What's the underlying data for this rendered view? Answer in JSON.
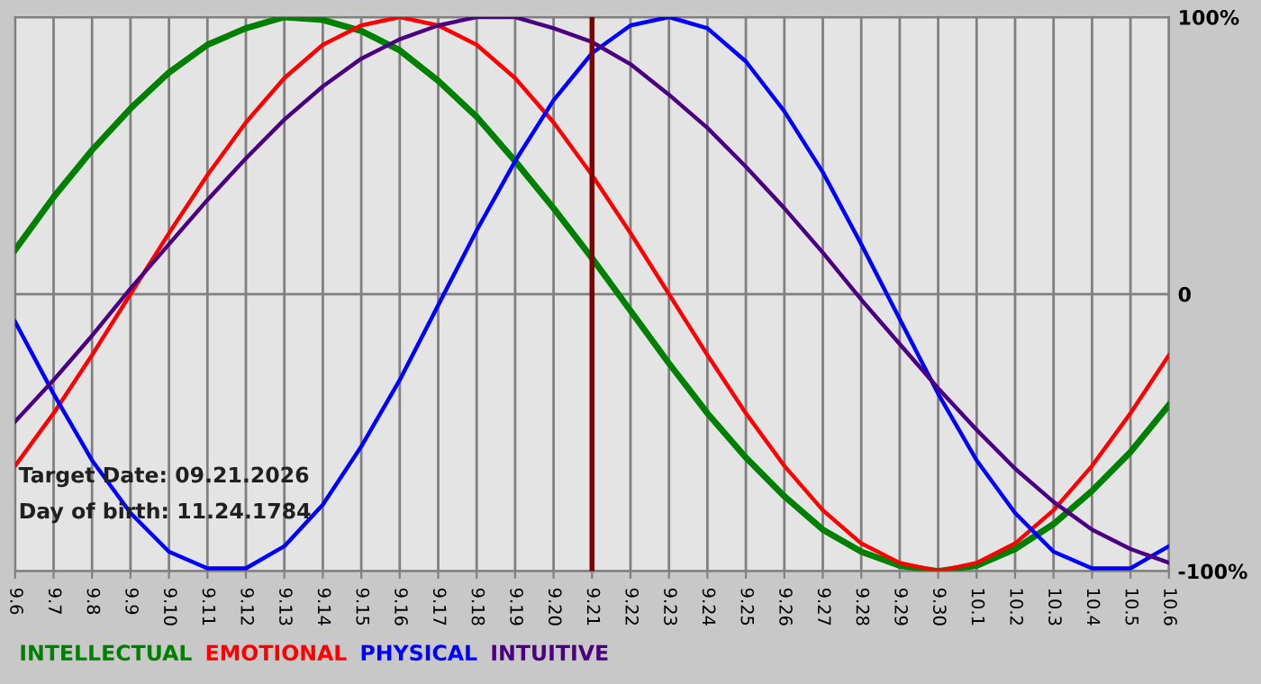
{
  "chart_data": {
    "type": "line",
    "categories": [
      "9.6",
      "9.7",
      "9.8",
      "9.9",
      "9.10",
      "9.11",
      "9.12",
      "9.13",
      "9.14",
      "9.15",
      "9.16",
      "9.17",
      "9.18",
      "9.19",
      "9.20",
      "9.21",
      "9.22",
      "9.23",
      "9.24",
      "9.25",
      "9.26",
      "9.27",
      "9.28",
      "9.29",
      "9.30",
      "10.1",
      "10.2",
      "10.3",
      "10.4",
      "10.5",
      "10.6"
    ],
    "series": [
      {
        "name": "INTELLECTUAL",
        "color": "#008000",
        "values": [
          16,
          35,
          52,
          67,
          80,
          90,
          96,
          100,
          99,
          95,
          88,
          77,
          64,
          48,
          31,
          13,
          -6,
          -25,
          -43,
          -59,
          -73,
          -85,
          -93,
          -98,
          -100,
          -98,
          -92,
          -83,
          -71,
          -57,
          -40
        ]
      },
      {
        "name": "EMOTIONAL",
        "color": "#ff0000",
        "values": [
          -62,
          -43,
          -22,
          0,
          22,
          43,
          62,
          78,
          90,
          97,
          100,
          97,
          90,
          78,
          62,
          43,
          22,
          0,
          -22,
          -43,
          -62,
          -78,
          -90,
          -97,
          -100,
          -97,
          -90,
          -78,
          -62,
          -43,
          -22
        ]
      },
      {
        "name": "PHYSICAL",
        "color": "#0000ff",
        "values": [
          -10,
          -36,
          -60,
          -79,
          -93,
          -99,
          -99,
          -91,
          -76,
          -55,
          -31,
          -4,
          23,
          48,
          70,
          87,
          97,
          100,
          96,
          84,
          66,
          44,
          18,
          -9,
          -36,
          -60,
          -79,
          -93,
          -99,
          -99,
          -91
        ]
      },
      {
        "name": "INTUITIVE",
        "color": "#4b0082",
        "values": [
          -46,
          -31,
          -15,
          2,
          18,
          34,
          49,
          63,
          75,
          85,
          92,
          97,
          100,
          100,
          96,
          91,
          83,
          72,
          60,
          46,
          31,
          15,
          -2,
          -18,
          -34,
          -49,
          -63,
          -75,
          -85,
          -92,
          -97
        ]
      }
    ],
    "ylim": [
      -100,
      100
    ],
    "yticks": [
      {
        "value": -100,
        "label": "-100%"
      },
      0,
      {
        "value": 100,
        "label": "100%"
      }
    ],
    "grid": true,
    "legend": "bottom",
    "ref_lines": [
      {
        "axis": "x",
        "value": "9.21",
        "color": "#800000"
      }
    ],
    "annotations": [
      "Target Date: 09.21.2026",
      "Day of birth: 11.24.1784"
    ]
  }
}
